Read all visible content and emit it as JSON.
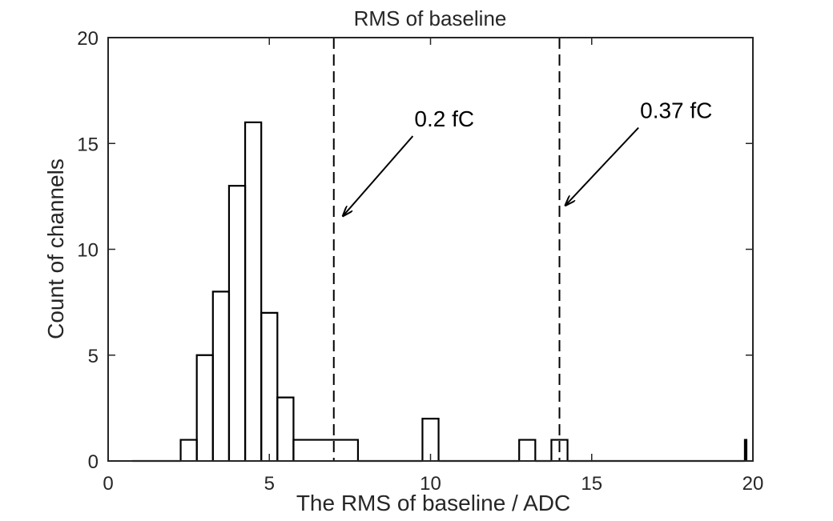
{
  "chart_data": {
    "type": "histogram",
    "title": "RMS of baseline",
    "xlabel": "The RMS of baseline / ADC",
    "ylabel": "Count of channels",
    "xlim": [
      0,
      20
    ],
    "ylim": [
      0,
      20
    ],
    "xticks": [
      0,
      5,
      10,
      15,
      20
    ],
    "yticks": [
      0,
      5,
      10,
      15,
      20
    ],
    "grid": false,
    "bins": [
      {
        "x0": 0.75,
        "x1": 2.25,
        "count": 0
      },
      {
        "x0": 2.25,
        "x1": 2.75,
        "count": 1
      },
      {
        "x0": 2.75,
        "x1": 3.25,
        "count": 5
      },
      {
        "x0": 3.25,
        "x1": 3.75,
        "count": 8
      },
      {
        "x0": 3.75,
        "x1": 4.25,
        "count": 13
      },
      {
        "x0": 4.25,
        "x1": 4.75,
        "count": 16
      },
      {
        "x0": 4.75,
        "x1": 5.25,
        "count": 7
      },
      {
        "x0": 5.25,
        "x1": 5.75,
        "count": 3
      },
      {
        "x0": 5.75,
        "x1": 7.75,
        "count": 1
      },
      {
        "x0": 7.75,
        "x1": 9.75,
        "count": 0
      },
      {
        "x0": 9.75,
        "x1": 10.25,
        "count": 2
      },
      {
        "x0": 10.25,
        "x1": 12.75,
        "count": 0
      },
      {
        "x0": 12.75,
        "x1": 13.25,
        "count": 1
      },
      {
        "x0": 13.25,
        "x1": 13.75,
        "count": 0
      },
      {
        "x0": 13.75,
        "x1": 14.25,
        "count": 1
      },
      {
        "x0": 14.25,
        "x1": 19.75,
        "count": 0
      },
      {
        "x0": 19.75,
        "x1": 19.8,
        "count": 1
      }
    ],
    "reference_lines": [
      {
        "x": 7,
        "label": "0.2 fC",
        "label_at": [
          9.5,
          15.8
        ],
        "arrow_to": [
          7.3,
          11.6
        ]
      },
      {
        "x": 14,
        "label": "0.37 fC",
        "label_at": [
          16.5,
          16.2
        ],
        "arrow_to": [
          14.2,
          12.1
        ]
      }
    ]
  }
}
